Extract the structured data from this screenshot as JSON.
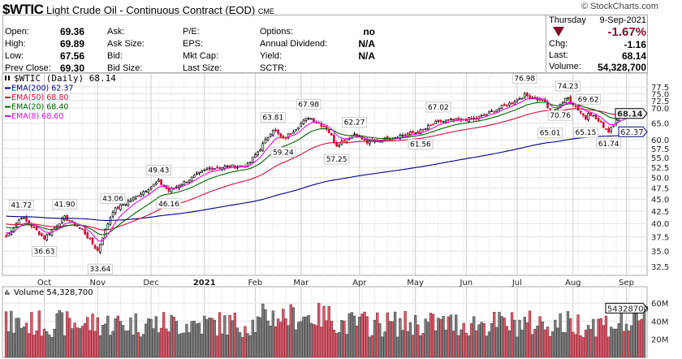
{
  "header": {
    "symbol": "$WTIC",
    "name": "Light Crude Oil - Continuous Contract (EOD)",
    "exchange": "CME",
    "copyright": "© StockCharts.com"
  },
  "info": {
    "col1": [
      {
        "label": "Open:",
        "value": "69.36"
      },
      {
        "label": "High:",
        "value": "69.89"
      },
      {
        "label": "Low:",
        "value": "67.56"
      },
      {
        "label": "Prev Close:",
        "value": "69.30"
      }
    ],
    "col2": [
      {
        "label": "Ask:"
      },
      {
        "label": "Ask Size:"
      },
      {
        "label": "Bid:"
      },
      {
        "label": "Bid Size:"
      }
    ],
    "col3": [
      {
        "label": "P/E:"
      },
      {
        "label": "EPS:"
      },
      {
        "label": "Mkt Cap:"
      },
      {
        "label": "Last Size:"
      }
    ],
    "col4": [
      {
        "label": "Options:",
        "value": "no"
      },
      {
        "label": "Annual Dividend:",
        "value": "N/A"
      },
      {
        "label": "Yield:",
        "value": "N/A"
      },
      {
        "label": "SCTR:",
        "value": ""
      }
    ]
  },
  "quote": {
    "day": "Thursday",
    "date": "9-Sep-2021",
    "pct": "-1.67%",
    "chg_label": "Chg:",
    "chg": "-1.16",
    "last_label": "Last:",
    "last": "68.14",
    "vol_label": "Volume:",
    "volume": "54,328,700",
    "color": "#8b0a2a"
  },
  "legend": [
    {
      "text": "$WTIC (Daily) 68.14",
      "color": "#000"
    },
    {
      "text": "EMA(200) 62.37",
      "color": "#000080"
    },
    {
      "text": "EMA(50) 68.80",
      "color": "#d0103a"
    },
    {
      "text": "EMA(20) 68.40",
      "color": "#006400"
    },
    {
      "text": "EMA(8) 68.60",
      "color": "#e010e0"
    }
  ],
  "volume_panel": {
    "title": "Volume 54,328,700",
    "tag": "54328700",
    "ticks": [
      "60M",
      "40M",
      "20M"
    ]
  },
  "chart_data": {
    "type": "candlestick",
    "scale": "log",
    "ylim": [
      31.5,
      80
    ],
    "y_ticks": [
      "77.5",
      "75.0",
      "72.5",
      "70.0",
      "65.0",
      "60.0",
      "57.5",
      "55.0",
      "52.5",
      "50.0",
      "47.5",
      "45.0",
      "42.5",
      "40.0",
      "37.5",
      "35.0",
      "32.5"
    ],
    "months": [
      {
        "label": "Oct",
        "day": 15
      },
      {
        "label": "Nov",
        "day": 36
      },
      {
        "label": "Dec",
        "day": 57
      },
      {
        "label": "2021",
        "day": 78,
        "bold": true
      },
      {
        "label": "Feb",
        "day": 98
      },
      {
        "label": "Mar",
        "day": 116
      },
      {
        "label": "Apr",
        "day": 139
      },
      {
        "label": "May",
        "day": 161
      },
      {
        "label": "Jun",
        "day": 181
      },
      {
        "label": "Jul",
        "day": 201
      },
      {
        "label": "Aug",
        "day": 223
      },
      {
        "label": "Sep",
        "day": 244
      }
    ],
    "n_days": 252,
    "close_anchors": [
      [
        0,
        37.5
      ],
      [
        6,
        41.3
      ],
      [
        15,
        37.3
      ],
      [
        23,
        41.2
      ],
      [
        30,
        38.8
      ],
      [
        36,
        35.0
      ],
      [
        42,
        42.5
      ],
      [
        50,
        45.2
      ],
      [
        60,
        49.0
      ],
      [
        64,
        46.8
      ],
      [
        80,
        52.3
      ],
      [
        95,
        53.0
      ],
      [
        100,
        57.5
      ],
      [
        105,
        63.2
      ],
      [
        109,
        60.0
      ],
      [
        119,
        67.0
      ],
      [
        126,
        63.5
      ],
      [
        130,
        58.5
      ],
      [
        137,
        61.8
      ],
      [
        142,
        59.2
      ],
      [
        163,
        62.5
      ],
      [
        170,
        65.5
      ],
      [
        185,
        66.5
      ],
      [
        198,
        71.5
      ],
      [
        204,
        74.5
      ],
      [
        212,
        72.5
      ],
      [
        214,
        66.5
      ],
      [
        218,
        71.5
      ],
      [
        221,
        73.5
      ],
      [
        228,
        66.5
      ],
      [
        229,
        68.8
      ],
      [
        237,
        62.5
      ],
      [
        240,
        66.5
      ],
      [
        247,
        68.8
      ],
      [
        251,
        68.14
      ]
    ],
    "ema_start": {
      "ema200": 41.5,
      "ema50": 40.0,
      "ema20": 39.5,
      "ema8": 38.5
    },
    "last_tags": {
      "price": "68.14",
      "ema200": "62.37"
    },
    "annotations": [
      {
        "text": "41.72",
        "day": 6,
        "value": 41.72,
        "pos": "above"
      },
      {
        "text": "36.63",
        "day": 15,
        "value": 36.63,
        "pos": "below"
      },
      {
        "text": "41.90",
        "day": 23,
        "value": 41.9,
        "pos": "above"
      },
      {
        "text": "33.64",
        "day": 37,
        "value": 33.64,
        "pos": "below"
      },
      {
        "text": "43.06",
        "day": 42,
        "value": 43.06,
        "pos": "above"
      },
      {
        "text": "49.43",
        "day": 60,
        "value": 49.43,
        "pos": "above"
      },
      {
        "text": "46.16",
        "day": 64,
        "value": 46.16,
        "pos": "below"
      },
      {
        "text": "63.81",
        "day": 105,
        "value": 63.81,
        "pos": "above"
      },
      {
        "text": "59.24",
        "day": 109,
        "value": 59.24,
        "pos": "below"
      },
      {
        "text": "67.98",
        "day": 119,
        "value": 67.98,
        "pos": "above"
      },
      {
        "text": "57.25",
        "day": 130,
        "value": 57.25,
        "pos": "below"
      },
      {
        "text": "62.27",
        "day": 137,
        "value": 62.27,
        "pos": "above"
      },
      {
        "text": "61.56",
        "day": 163,
        "value": 61.56,
        "pos": "below"
      },
      {
        "text": "67.02",
        "day": 170,
        "value": 67.02,
        "pos": "above"
      },
      {
        "text": "76.98",
        "day": 204,
        "value": 76.98,
        "pos": "above"
      },
      {
        "text": "65.01",
        "day": 214,
        "value": 65.01,
        "pos": "below"
      },
      {
        "text": "70.76",
        "day": 218,
        "value": 70.76,
        "pos": "below"
      },
      {
        "text": "74.23",
        "day": 221,
        "value": 74.23,
        "pos": "above"
      },
      {
        "text": "65.15",
        "day": 228,
        "value": 65.15,
        "pos": "below"
      },
      {
        "text": "69.62",
        "day": 229,
        "value": 69.62,
        "pos": "above"
      },
      {
        "text": "61.74",
        "day": 237,
        "value": 61.74,
        "pos": "below"
      }
    ],
    "volume_range_M": [
      0,
      78
    ],
    "colors": {
      "up": "#000",
      "down": "#d0103a",
      "vol_up": "#808080",
      "vol_down": "#d06070"
    }
  }
}
